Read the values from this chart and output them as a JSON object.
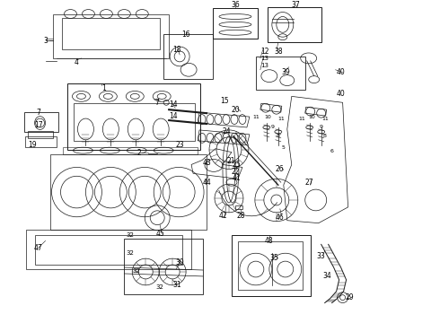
{
  "bg_color": "#ffffff",
  "lc": "#1a1a1a",
  "lw": 0.5,
  "fig_width": 4.9,
  "fig_height": 3.6,
  "dpi": 100
}
